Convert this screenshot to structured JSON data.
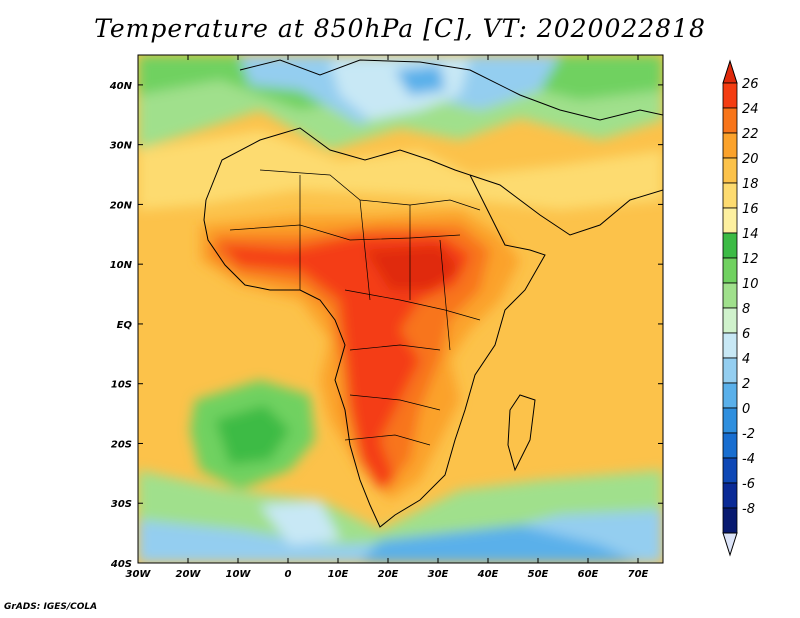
{
  "title": "Temperature at 850hPa [C], VT: 2020022818",
  "credit": "GrADS: IGES/COLA",
  "map": {
    "lon_range": [
      -30,
      75
    ],
    "lat_range": [
      -40,
      45
    ],
    "lon_ticks": [
      "30W",
      "20W",
      "10W",
      "0",
      "10E",
      "20E",
      "30E",
      "40E",
      "50E",
      "60E",
      "70E"
    ],
    "lat_ticks": [
      "40N",
      "30N",
      "20N",
      "10N",
      "EQ",
      "10S",
      "20S",
      "30S",
      "40S"
    ]
  },
  "colorbar": {
    "labels": [
      "26",
      "24",
      "22",
      "20",
      "18",
      "16",
      "14",
      "12",
      "10",
      "8",
      "6",
      "4",
      "2",
      "0",
      "-2",
      "-4",
      "-6",
      "-8"
    ],
    "colors": [
      "#f43d12",
      "#f8751a",
      "#fba22b",
      "#fcc24a",
      "#fddb70",
      "#fdf0a0",
      "#3cbb45",
      "#70d160",
      "#a0e08c",
      "#d0f2cc",
      "#c8e8f5",
      "#94cef0",
      "#5ab0ea",
      "#2f8fde",
      "#186ed0",
      "#0e48b6",
      "#0a2a96",
      "#081a70"
    ],
    "top_arrow_color": "#e02a0c",
    "bottom_arrow_color": "#dce4f8"
  }
}
